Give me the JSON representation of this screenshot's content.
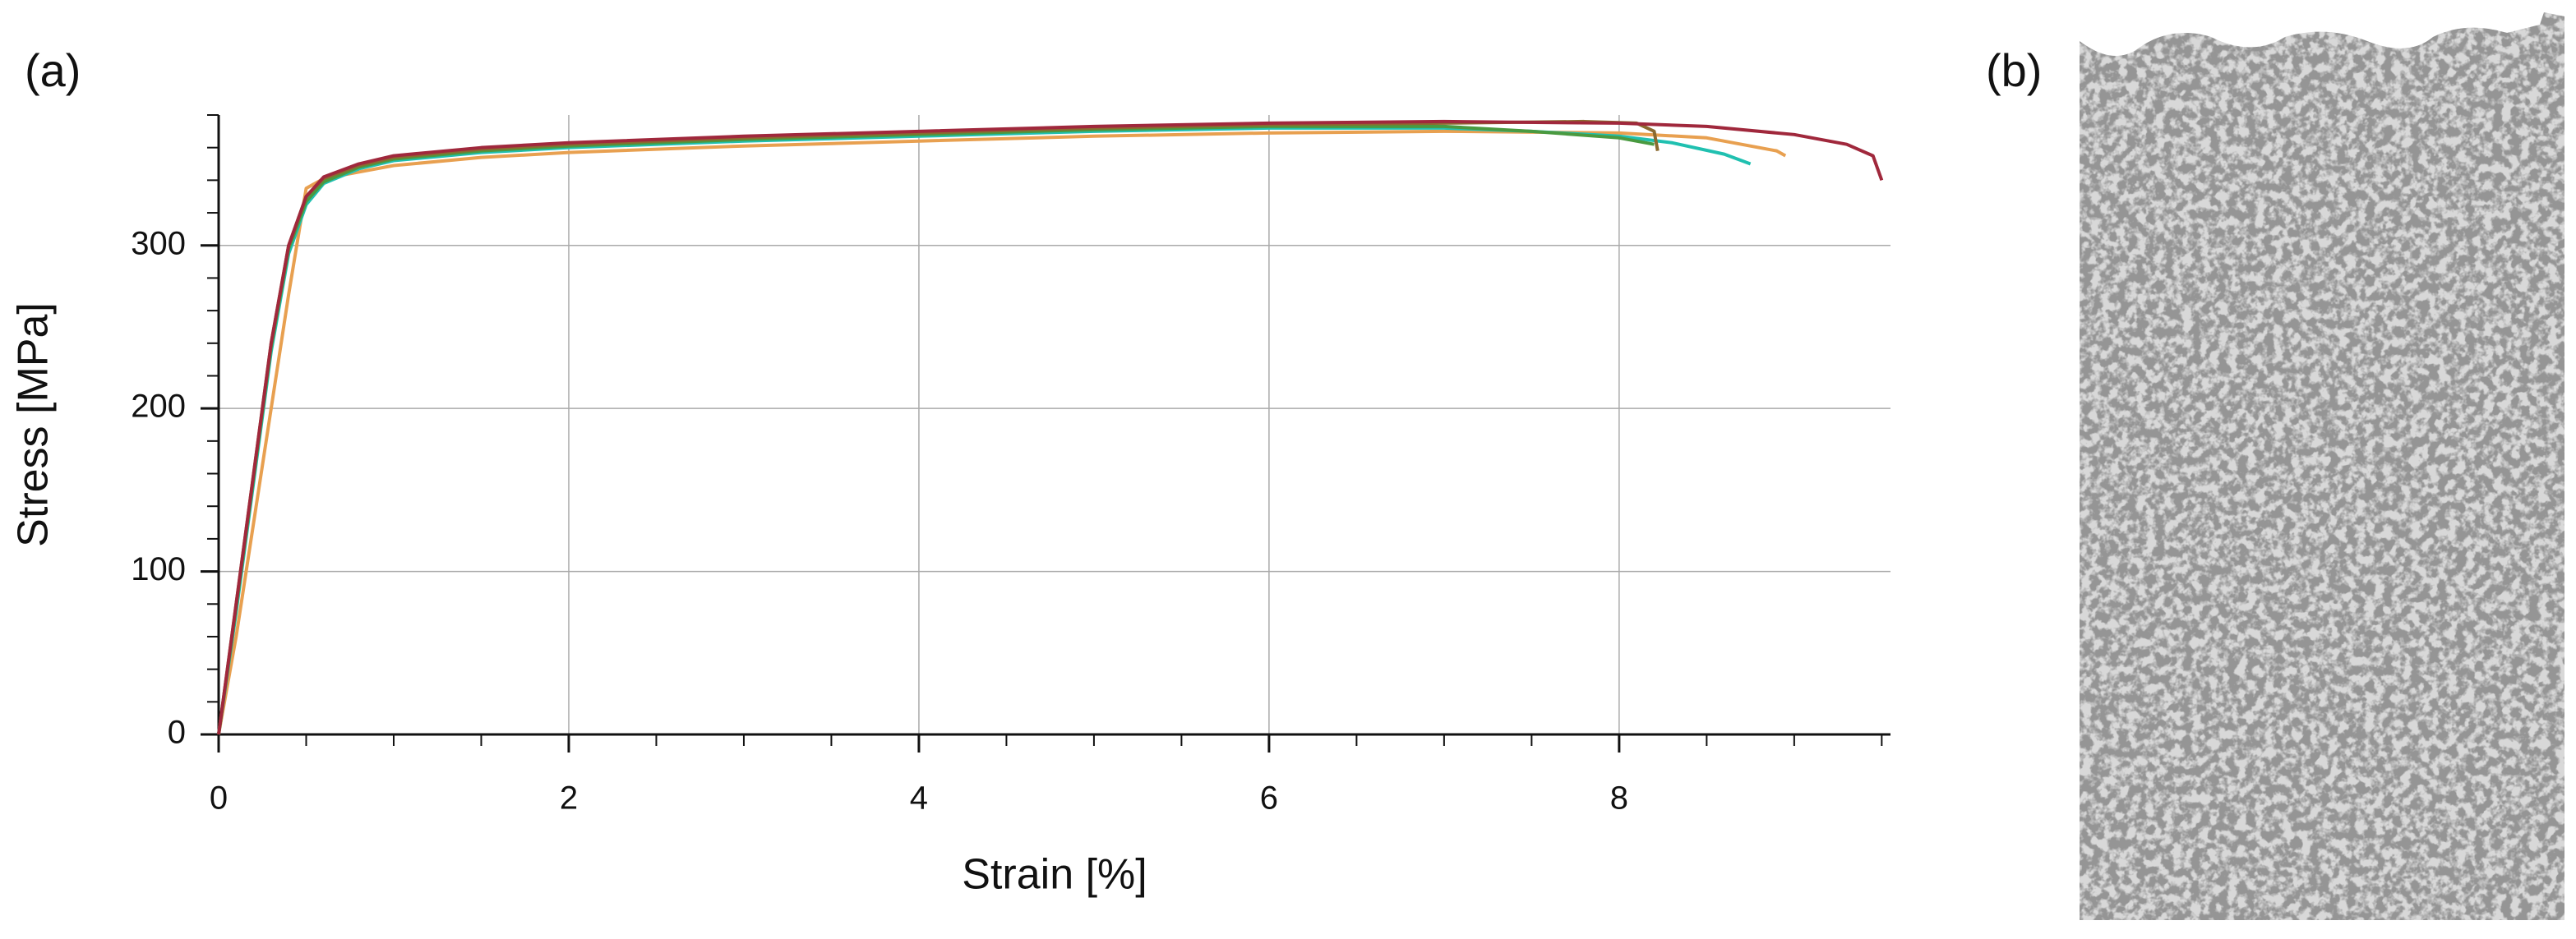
{
  "chart_data": {
    "type": "line",
    "panel_labels": [
      "(a)",
      "(b)"
    ],
    "xlabel": "Strain [%]",
    "ylabel": "Stress [MPa]",
    "xlim": [
      0,
      9.55
    ],
    "ylim": [
      0,
      380
    ],
    "xticks": [
      0,
      2,
      4,
      6,
      8
    ],
    "yticks": [
      0,
      100,
      200,
      300
    ],
    "xminorticks": [
      0.5,
      1,
      1.5,
      2.5,
      3,
      3.5,
      4.5,
      5,
      5.5,
      6.5,
      7,
      7.5,
      8.5,
      9,
      9.5
    ],
    "yminorticks": [
      20,
      40,
      60,
      80,
      120,
      140,
      160,
      180,
      220,
      240,
      260,
      280,
      320,
      340,
      360,
      380
    ],
    "grid": true,
    "series": [
      {
        "color": "#e8a050",
        "x": [
          0,
          0.1,
          0.2,
          0.3,
          0.4,
          0.5,
          0.6,
          0.8,
          1,
          1.5,
          2,
          3,
          4,
          5,
          6,
          7,
          8,
          8.5,
          8.9,
          8.95
        ],
        "values": [
          0,
          60,
          130,
          200,
          270,
          335,
          341,
          345,
          349,
          354,
          357,
          361,
          364,
          367,
          369,
          370,
          369,
          366,
          358,
          355
        ]
      },
      {
        "color": "#20c0b0",
        "x": [
          0,
          0.1,
          0.2,
          0.3,
          0.4,
          0.5,
          0.6,
          0.8,
          1,
          1.5,
          2,
          3,
          4,
          5,
          6,
          7,
          7.5,
          8,
          8.3,
          8.6,
          8.75
        ],
        "values": [
          0,
          75,
          155,
          235,
          295,
          325,
          338,
          347,
          352,
          357,
          360,
          364,
          367,
          370,
          372,
          372,
          370,
          367,
          363,
          356,
          350
        ]
      },
      {
        "color": "#4a9a40",
        "x": [
          0,
          0.1,
          0.2,
          0.3,
          0.4,
          0.5,
          0.6,
          0.8,
          1,
          1.5,
          2,
          3,
          4,
          5,
          6,
          7,
          7.5,
          8,
          8.2
        ],
        "values": [
          0,
          78,
          158,
          238,
          298,
          327,
          339,
          348,
          353,
          358,
          361,
          365,
          368,
          371,
          373,
          373,
          370,
          366,
          362
        ]
      },
      {
        "color": "#8b6a30",
        "x": [
          0,
          0.1,
          0.2,
          0.3,
          0.4,
          0.5,
          0.6,
          0.8,
          1,
          1.5,
          2,
          3,
          4,
          5,
          6,
          7,
          7.8,
          8.1,
          8.2,
          8.22
        ],
        "values": [
          0,
          80,
          160,
          240,
          300,
          330,
          341,
          349,
          354,
          359,
          362,
          366,
          369,
          372,
          374,
          375,
          376,
          375,
          370,
          358
        ]
      },
      {
        "color": "#a0283c",
        "x": [
          0,
          0.1,
          0.2,
          0.3,
          0.4,
          0.5,
          0.6,
          0.8,
          1,
          1.5,
          2,
          3,
          4,
          5,
          6,
          7,
          8,
          8.5,
          9,
          9.3,
          9.45,
          9.5
        ],
        "values": [
          0,
          80,
          160,
          240,
          300,
          330,
          342,
          350,
          355,
          360,
          363,
          367,
          370,
          373,
          375,
          376,
          375,
          373,
          368,
          362,
          355,
          340
        ]
      }
    ]
  }
}
